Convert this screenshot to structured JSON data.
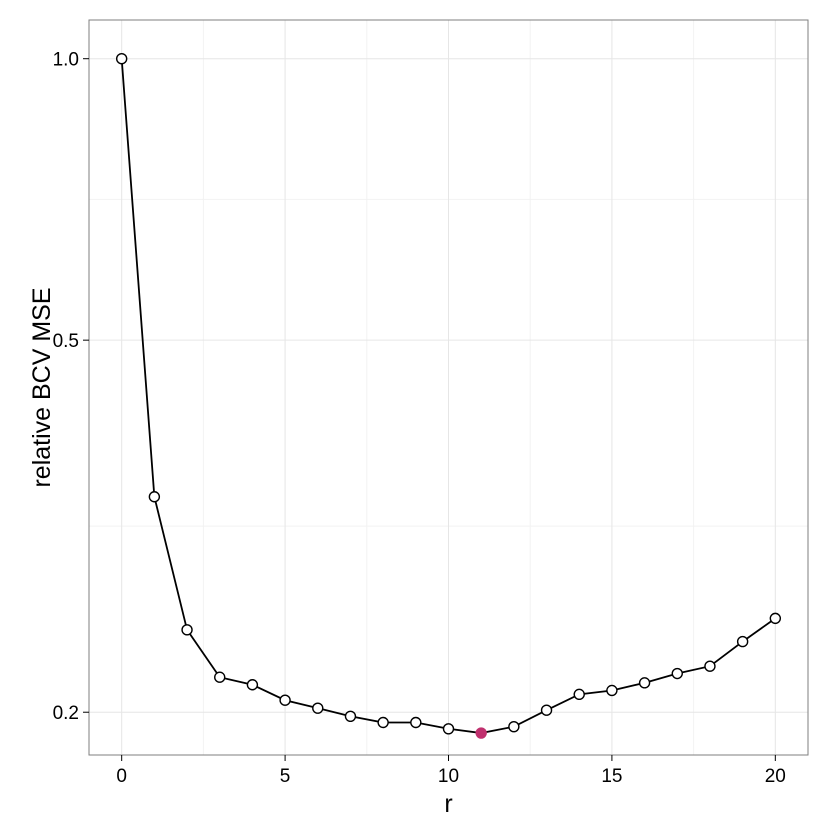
{
  "chart_data": {
    "type": "line",
    "xlabel": "r",
    "ylabel": "relative BCV MSE",
    "y_scale": "log",
    "xlim": [
      -1,
      21
    ],
    "ylim": [
      0.18,
      1.1
    ],
    "x_ticks": [
      0,
      5,
      10,
      15,
      20
    ],
    "x_tick_labels": [
      "0",
      "5",
      "10",
      "15",
      "20"
    ],
    "y_ticks": [
      0.2,
      0.5,
      1.0
    ],
    "y_tick_labels": [
      "0.2",
      "0.5",
      "1.0"
    ],
    "grid": true,
    "series": [
      {
        "x": [
          0,
          1,
          2,
          3,
          4,
          5,
          6,
          7,
          8,
          9,
          10,
          11,
          12,
          13,
          14,
          15,
          16,
          17,
          18,
          19,
          20
        ],
        "values": [
          1.0,
          0.34,
          0.245,
          0.218,
          0.214,
          0.206,
          0.202,
          0.198,
          0.195,
          0.195,
          0.192,
          0.19,
          0.193,
          0.201,
          0.209,
          0.211,
          0.215,
          0.22,
          0.224,
          0.238,
          0.252
        ],
        "color": "#000000",
        "highlight_index": 11,
        "highlight_color": "#c0306e"
      }
    ]
  }
}
